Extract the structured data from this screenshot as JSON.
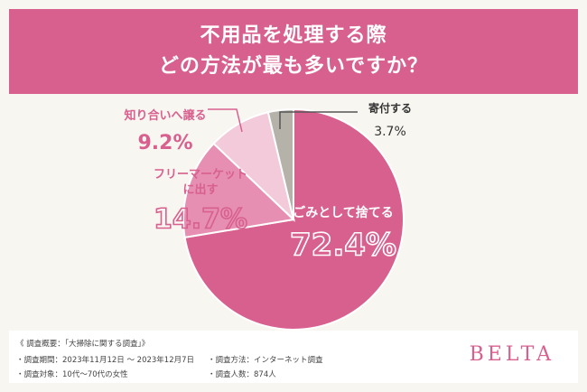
{
  "header": {
    "line1": "不用品を処理する際",
    "line2": "どの方法が最も多いですか？"
  },
  "chart_data": {
    "type": "pie",
    "categories": [
      "ごみとして捨てる",
      "フリーマーケットに出す",
      "知り合いへ譲る",
      "寄付する"
    ],
    "values": [
      72.4,
      14.7,
      9.2,
      3.7
    ],
    "labels": [
      {
        "lines": [
          "ごみとして捨てる"
        ],
        "value_text": "72.4%"
      },
      {
        "lines": [
          "フリーマーケット",
          "に出す"
        ],
        "value_text": "14.7%"
      },
      {
        "lines": [
          "知り合いへ譲る"
        ],
        "value_text": "9.2%"
      },
      {
        "lines": [
          "寄付する"
        ],
        "value_text": "3.7%"
      }
    ],
    "colors": [
      "#d8608f",
      "#e68fb2",
      "#f3cad9",
      "#b5b2aa"
    ],
    "title": "",
    "legend": "none"
  },
  "footer": {
    "overview": "《 調査概要：「大掃除に関する調査」》",
    "period": "・調査期間：2023年11月12日 ～ 2023年12月7日",
    "target": "・調査対象：10代～70代の女性",
    "method": "・調査方法：インターネット調査",
    "count": "・調査人数：874人",
    "brand": "BELTA"
  }
}
